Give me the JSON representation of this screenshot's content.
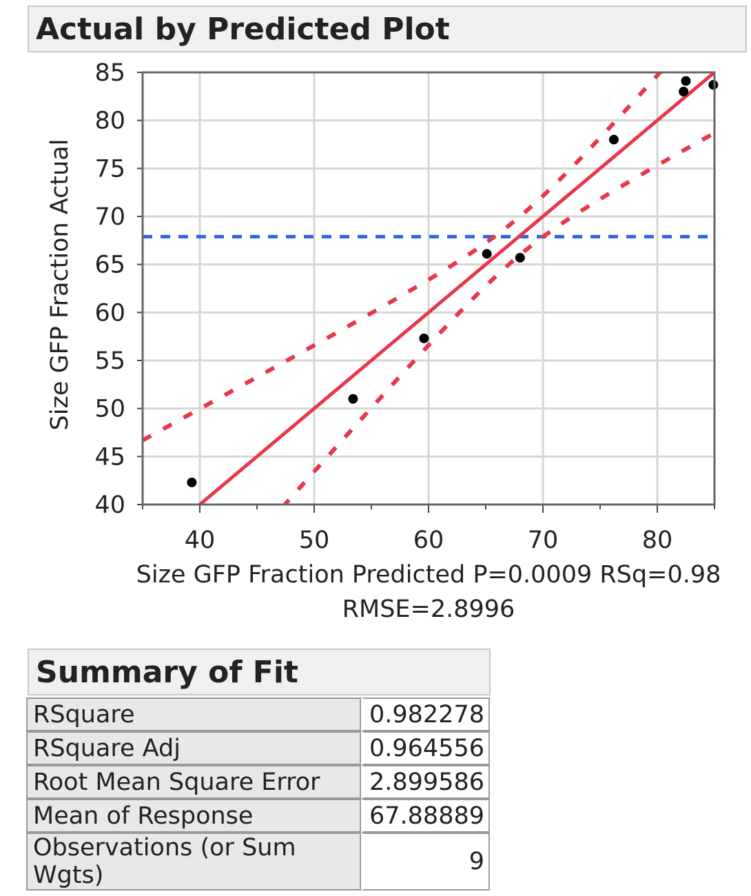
{
  "title": "Actual by Predicted Plot",
  "chart_data": {
    "type": "scatter",
    "xlabel": "Size GFP Fraction Predicted P=0.0009 RSq=0.98",
    "xlabel2": "RMSE=2.8996",
    "ylabel": "Size GFP Fraction Actual",
    "xlim": [
      35,
      85
    ],
    "ylim": [
      40,
      85
    ],
    "xticks": [
      40,
      50,
      60,
      70,
      80
    ],
    "yticks": [
      40,
      45,
      50,
      55,
      60,
      65,
      70,
      75,
      80,
      85
    ],
    "grid": true,
    "points": [
      {
        "x": 39.3,
        "y": 42.3
      },
      {
        "x": 53.4,
        "y": 51.0
      },
      {
        "x": 59.6,
        "y": 57.3
      },
      {
        "x": 65.1,
        "y": 66.1
      },
      {
        "x": 68.0,
        "y": 65.7
      },
      {
        "x": 76.2,
        "y": 78.0
      },
      {
        "x": 82.3,
        "y": 83.0
      },
      {
        "x": 82.5,
        "y": 84.1
      },
      {
        "x": 84.9,
        "y": 83.7
      }
    ],
    "fit_line": {
      "color": "#e8374a"
    },
    "mean_line": {
      "y": 67.88889,
      "color": "#2f62e8"
    }
  },
  "summary": {
    "title": "Summary of Fit",
    "rows": [
      {
        "label": "RSquare",
        "value": "0.982278"
      },
      {
        "label": "RSquare Adj",
        "value": "0.964556"
      },
      {
        "label": "Root Mean Square Error",
        "value": "2.899586"
      },
      {
        "label": "Mean of Response",
        "value": "67.88889"
      },
      {
        "label": "Observations (or Sum Wgts)",
        "value": "9"
      }
    ]
  }
}
